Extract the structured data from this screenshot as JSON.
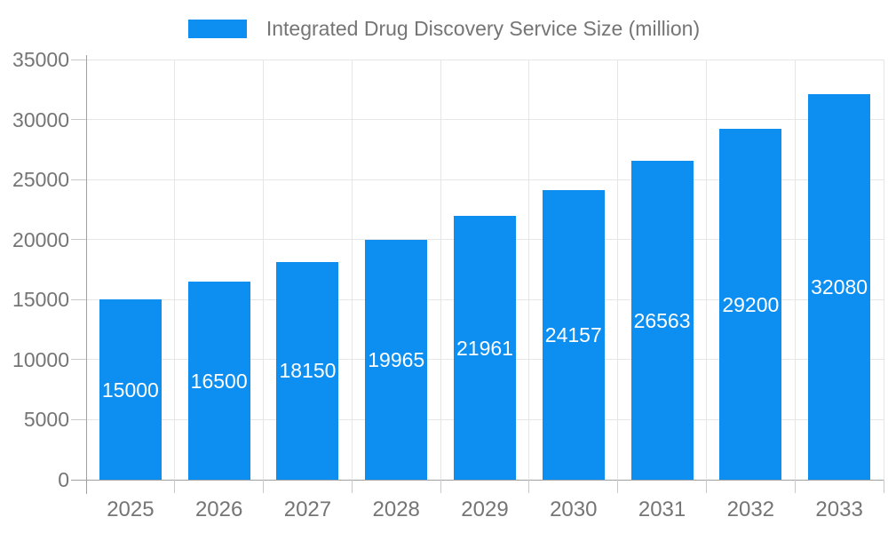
{
  "chart_data": {
    "type": "bar",
    "title": "Integrated Drug Discovery Service Size (million)",
    "categories": [
      "2025",
      "2026",
      "2027",
      "2028",
      "2029",
      "2030",
      "2031",
      "2032",
      "2033"
    ],
    "values": [
      15000,
      16500,
      18150,
      19965,
      21961,
      24157,
      26563,
      29200,
      32080
    ],
    "xlabel": "",
    "ylabel": "",
    "ylim": [
      0,
      35000
    ],
    "ytick_step": 5000,
    "ytick_labels": [
      "0",
      "5000",
      "10000",
      "15000",
      "20000",
      "25000",
      "30000",
      "35000"
    ],
    "grid": true,
    "legend_position": "top",
    "colors": {
      "bar": "#0d8ff2",
      "bar_value_label": "#ffffff",
      "axis_text": "#757575",
      "gridline": "#e6e6e6",
      "axis_line": "#a0a0a0",
      "tick": "#c9c9c9",
      "background": "#ffffff"
    }
  }
}
